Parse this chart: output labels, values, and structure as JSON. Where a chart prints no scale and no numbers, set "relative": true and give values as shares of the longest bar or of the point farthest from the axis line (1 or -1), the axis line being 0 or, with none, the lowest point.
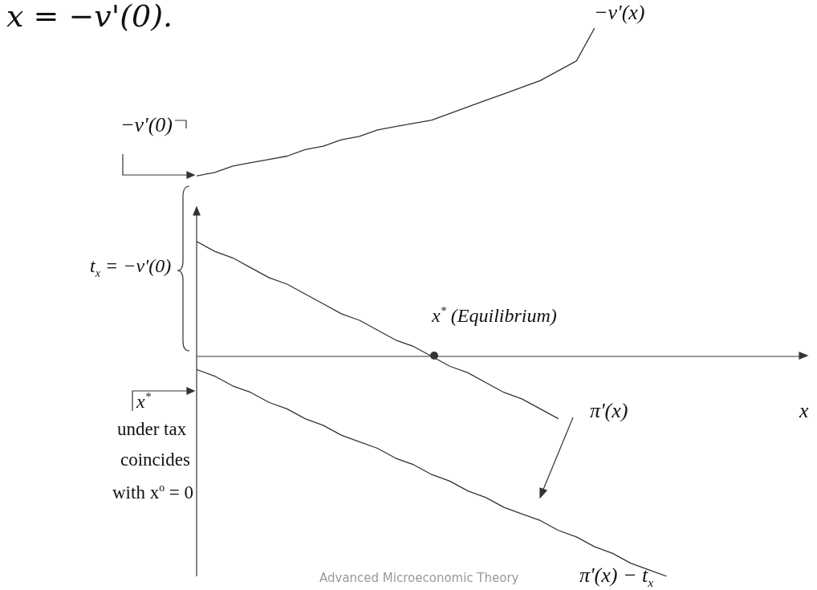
{
  "chart_data": {
    "type": "line",
    "relative": true,
    "title": "x = −v'(0).",
    "xlabel": "x",
    "marker": "none",
    "line_style": "solid",
    "categories": [
      null,
      null,
      null,
      null,
      null,
      null,
      null,
      null,
      null,
      null,
      null,
      null,
      null,
      null,
      null,
      null,
      null,
      null,
      null,
      null,
      null,
      null,
      null,
      null,
      null,
      null,
      null,
      null,
      null,
      null,
      null,
      null,
      null,
      null
    ],
    "series": [
      {
        "name": "−v'(x)",
        "color": "#333333",
        "values": [
          0.55,
          0.56,
          0.58,
          0.59,
          0.6,
          0.61,
          0.63,
          0.64,
          0.66,
          0.67,
          0.69,
          0.7,
          0.71,
          0.72,
          0.74,
          0.76,
          0.78,
          0.8,
          0.82,
          0.84,
          0.87,
          0.9,
          1.0,
          null,
          null,
          null,
          null,
          null,
          null,
          null,
          null,
          null,
          null,
          null
        ]
      },
      {
        "name": "π'(x)",
        "color": "#333333",
        "values": [
          0.35,
          0.32,
          0.3,
          0.27,
          0.24,
          0.22,
          0.19,
          0.16,
          0.13,
          0.11,
          0.08,
          0.05,
          0.03,
          0,
          -0.03,
          -0.05,
          -0.08,
          -0.11,
          -0.13,
          -0.16,
          -0.19,
          null,
          null,
          null,
          null,
          null,
          null,
          null,
          null,
          null,
          null,
          null,
          null,
          null
        ]
      },
      {
        "name": "π'(x) − t$_{x}$",
        "color": "#333333",
        "values": [
          -0.04,
          -0.06,
          -0.09,
          -0.11,
          -0.14,
          -0.16,
          -0.19,
          -0.21,
          -0.24,
          -0.26,
          -0.28,
          -0.31,
          -0.33,
          -0.36,
          -0.38,
          -0.41,
          -0.43,
          -0.46,
          -0.48,
          -0.5,
          -0.53,
          -0.55,
          -0.58,
          -0.6,
          -0.63,
          -0.65,
          -0.67,
          null,
          null,
          null,
          null,
          null,
          null,
          null
        ]
      }
    ],
    "annotations": [
      "−v'(0)",
      "t$_{x}$ = −v'(0)",
      "x$^{*}$ (Equilibrium)",
      "x$^{*}$",
      "under tax",
      "coincides",
      "with x$^{o}$ = 0",
      "Advanced Microeconomic Theory"
    ]
  }
}
